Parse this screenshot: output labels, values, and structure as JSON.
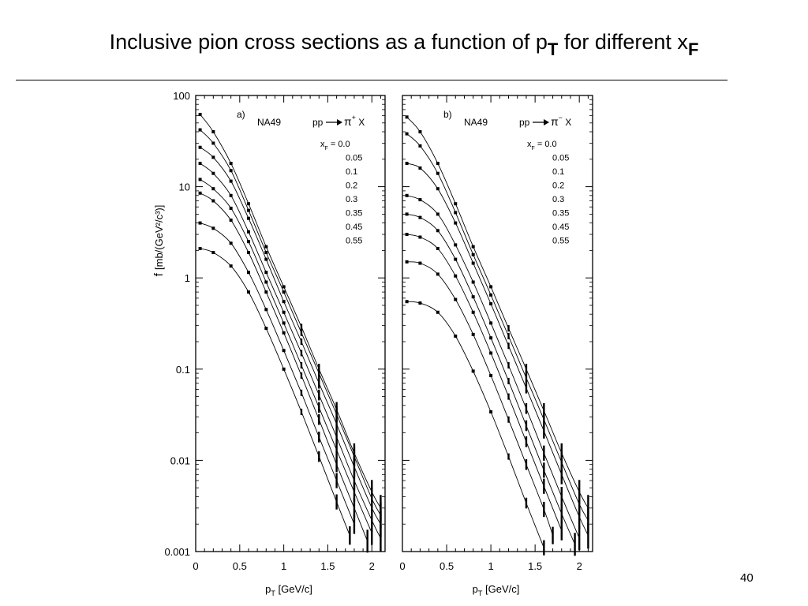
{
  "slide": {
    "title_main": "Inclusive pion cross sections as a function of p",
    "title_sub_T": "T",
    "title_mid": " for different x",
    "title_sub_F": "F",
    "page_number": "40"
  },
  "chart_data": [
    {
      "type": "line",
      "panel_label": "a)",
      "experiment": "NA49",
      "reaction": "pp",
      "product": "π",
      "charge": "+",
      "product_suffix": "X",
      "legend_header": "x",
      "legend_header_sub": "F",
      "legend_header_value": "= 0.0",
      "xlabel": "p",
      "xlabel_sub": "T",
      "xlabel_unit": "[GeV/c]",
      "ylabel": "f",
      "ylabel_unit": "[mb/(GeV²/c³)]",
      "xlim": [
        0,
        2.15
      ],
      "ylim": [
        0.001,
        100
      ],
      "yscale": "log",
      "x_ticks": [
        "0",
        "0.5",
        "1",
        "1.5",
        "2"
      ],
      "y_ticks": [
        "0.001",
        "0.01",
        "0.1",
        "1",
        "10",
        "100"
      ],
      "legend_values": [
        "0.0",
        "0.05",
        "0.1",
        "0.2",
        "0.3",
        "0.35",
        "0.45",
        "0.55"
      ],
      "series": [
        {
          "xF": "0.0",
          "x": [
            0.05,
            0.2,
            0.4,
            0.6,
            0.8,
            1.0,
            1.2,
            1.4,
            1.6,
            1.8,
            2.0,
            2.1
          ],
          "y": [
            62,
            40,
            18,
            6.5,
            2.2,
            0.8,
            0.29,
            0.1,
            0.036,
            0.012,
            0.0045,
            0.003
          ]
        },
        {
          "xF": "0.05",
          "x": [
            0.05,
            0.2,
            0.4,
            0.6,
            0.8,
            1.0,
            1.2,
            1.4,
            1.6,
            1.8,
            2.0,
            2.1
          ],
          "y": [
            42,
            30,
            15,
            5.5,
            1.9,
            0.7,
            0.25,
            0.09,
            0.032,
            0.011,
            0.0038,
            0.0025
          ]
        },
        {
          "xF": "0.1",
          "x": [
            0.05,
            0.2,
            0.4,
            0.6,
            0.8,
            1.0,
            1.2,
            1.4,
            1.6,
            1.8,
            2.0,
            2.1
          ],
          "y": [
            27,
            21,
            11.5,
            4.5,
            1.6,
            0.55,
            0.2,
            0.07,
            0.025,
            0.0085,
            0.003,
            0.002
          ]
        },
        {
          "xF": "0.2",
          "x": [
            0.05,
            0.2,
            0.4,
            0.6,
            0.8,
            1.0,
            1.2,
            1.4,
            1.6,
            1.8,
            2.0,
            2.1
          ],
          "y": [
            18,
            14,
            8,
            3.2,
            1.15,
            0.42,
            0.15,
            0.052,
            0.018,
            0.006,
            0.0022,
            0.0014
          ]
        },
        {
          "xF": "0.3",
          "x": [
            0.05,
            0.2,
            0.4,
            0.6,
            0.8,
            1.0,
            1.2,
            1.4,
            1.6,
            1.8,
            2.0
          ],
          "y": [
            12,
            9.5,
            5.8,
            2.5,
            0.9,
            0.32,
            0.11,
            0.038,
            0.013,
            0.0045,
            0.0016
          ]
        },
        {
          "xF": "0.35",
          "x": [
            0.05,
            0.2,
            0.4,
            0.6,
            0.8,
            1.0,
            1.2,
            1.4,
            1.6,
            1.8,
            1.95
          ],
          "y": [
            8.5,
            7,
            4.3,
            1.9,
            0.7,
            0.25,
            0.085,
            0.028,
            0.009,
            0.003,
            0.0013
          ]
        },
        {
          "xF": "0.45",
          "x": [
            0.05,
            0.2,
            0.4,
            0.6,
            0.8,
            1.0,
            1.2,
            1.4,
            1.6,
            1.8
          ],
          "y": [
            4,
            3.5,
            2.4,
            1.15,
            0.45,
            0.16,
            0.055,
            0.018,
            0.006,
            0.002
          ]
        },
        {
          "xF": "0.55",
          "x": [
            0.05,
            0.2,
            0.4,
            0.6,
            0.8,
            1.0,
            1.2,
            1.4,
            1.6,
            1.75
          ],
          "y": [
            2.1,
            1.9,
            1.35,
            0.7,
            0.28,
            0.1,
            0.034,
            0.011,
            0.0035,
            0.0015
          ]
        }
      ]
    },
    {
      "type": "line",
      "panel_label": "b)",
      "experiment": "NA49",
      "reaction": "pp",
      "product": "π",
      "charge": "−",
      "product_suffix": "X",
      "legend_header": "x",
      "legend_header_sub": "F",
      "legend_header_value": "= 0.0",
      "xlabel": "p",
      "xlabel_sub": "T",
      "xlabel_unit": "[GeV/c]",
      "xlim": [
        0,
        2.15
      ],
      "ylim": [
        0.001,
        100
      ],
      "yscale": "log",
      "x_ticks": [
        "0",
        "0.5",
        "1",
        "1.5",
        "2"
      ],
      "legend_values": [
        "0.0",
        "0.05",
        "0.1",
        "0.2",
        "0.3",
        "0.35",
        "0.45",
        "0.55"
      ],
      "series": [
        {
          "xF": "0.0",
          "x": [
            0.05,
            0.2,
            0.4,
            0.6,
            0.8,
            1.0,
            1.2,
            1.4,
            1.6,
            1.8,
            2.0,
            2.1
          ],
          "y": [
            58,
            40,
            18,
            6.5,
            2.2,
            0.8,
            0.28,
            0.1,
            0.035,
            0.012,
            0.0045,
            0.003
          ]
        },
        {
          "xF": "0.05",
          "x": [
            0.05,
            0.2,
            0.4,
            0.6,
            0.8,
            1.0,
            1.2,
            1.4,
            1.6,
            1.8,
            2.0,
            2.1
          ],
          "y": [
            38,
            28,
            14,
            5.2,
            1.8,
            0.65,
            0.23,
            0.08,
            0.028,
            0.0095,
            0.0033,
            0.0022
          ]
        },
        {
          "xF": "0.1",
          "x": [
            0.05,
            0.2,
            0.4,
            0.6,
            0.8,
            1.0,
            1.2,
            1.4,
            1.6,
            1.8,
            2.0,
            2.1
          ],
          "y": [
            18,
            16,
            9.5,
            4,
            1.45,
            0.52,
            0.18,
            0.062,
            0.021,
            0.007,
            0.0024,
            0.0015
          ]
        },
        {
          "xF": "0.2",
          "x": [
            0.05,
            0.2,
            0.4,
            0.6,
            0.8,
            1.0,
            1.2,
            1.4,
            1.6,
            1.8,
            2.0
          ],
          "y": [
            8,
            7.2,
            5,
            2.3,
            0.9,
            0.32,
            0.11,
            0.037,
            0.012,
            0.004,
            0.0014
          ]
        },
        {
          "xF": "0.3",
          "x": [
            0.05,
            0.2,
            0.4,
            0.6,
            0.8,
            1.0,
            1.2,
            1.4,
            1.6,
            1.8,
            1.95
          ],
          "y": [
            5,
            4.6,
            3.3,
            1.6,
            0.62,
            0.22,
            0.074,
            0.024,
            0.0078,
            0.0026,
            0.0012
          ]
        },
        {
          "xF": "0.35",
          "x": [
            0.05,
            0.2,
            0.4,
            0.6,
            0.8,
            1.0,
            1.2,
            1.4,
            1.6,
            1.8
          ],
          "y": [
            3,
            2.8,
            2.1,
            1.05,
            0.42,
            0.15,
            0.05,
            0.016,
            0.0052,
            0.0017
          ]
        },
        {
          "xF": "0.45",
          "x": [
            0.05,
            0.2,
            0.4,
            0.6,
            0.8,
            1.0,
            1.2,
            1.4,
            1.6,
            1.7
          ],
          "y": [
            1.5,
            1.45,
            1.1,
            0.58,
            0.24,
            0.085,
            0.028,
            0.009,
            0.0029,
            0.0015
          ]
        },
        {
          "xF": "0.55",
          "x": [
            0.05,
            0.2,
            0.4,
            0.6,
            0.8,
            1.0,
            1.2,
            1.4,
            1.6
          ],
          "y": [
            0.55,
            0.53,
            0.42,
            0.23,
            0.095,
            0.034,
            0.011,
            0.0034,
            0.0011
          ]
        }
      ]
    }
  ]
}
